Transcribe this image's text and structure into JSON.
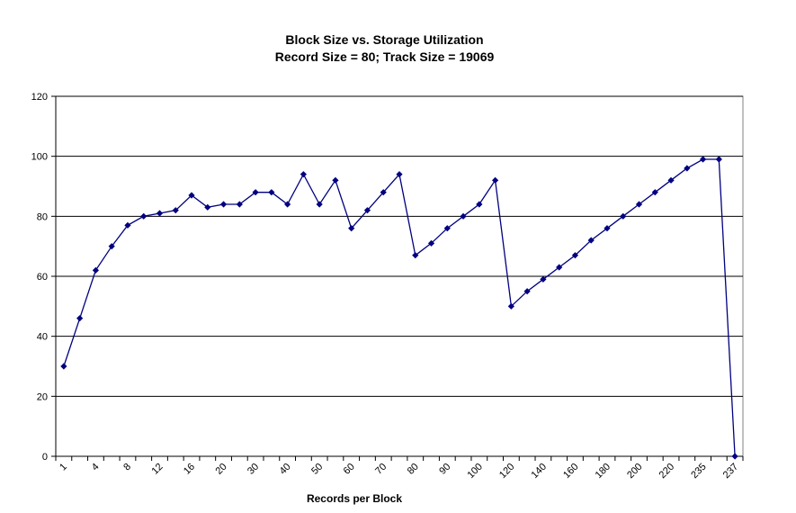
{
  "chart_data": {
    "type": "line",
    "title": "Block Size vs. Storage Utilization",
    "subtitle": "Record Size = 80; Track Size = 19069",
    "xlabel": "Records per Block",
    "ylabel": "",
    "ylim": [
      0,
      120
    ],
    "yticks": [
      0,
      20,
      40,
      60,
      80,
      100,
      120
    ],
    "grid": "horizontal",
    "legend": "none",
    "x_tick_labels": [
      "1",
      "4",
      "8",
      "12",
      "16",
      "20",
      "30",
      "40",
      "50",
      "60",
      "70",
      "80",
      "90",
      "100",
      "120",
      "140",
      "160",
      "180",
      "200",
      "220",
      "235",
      "237"
    ],
    "series": [
      {
        "color": "#000080",
        "values": [
          30,
          46,
          62,
          70,
          77,
          80,
          81,
          82,
          87,
          83,
          84,
          84,
          88,
          88,
          84,
          94,
          84,
          92,
          76,
          82,
          88,
          94,
          67,
          71,
          76,
          80,
          84,
          92,
          50,
          55,
          59,
          63,
          67,
          72,
          76,
          80,
          84,
          88,
          92,
          96,
          99,
          99,
          0
        ]
      }
    ]
  }
}
